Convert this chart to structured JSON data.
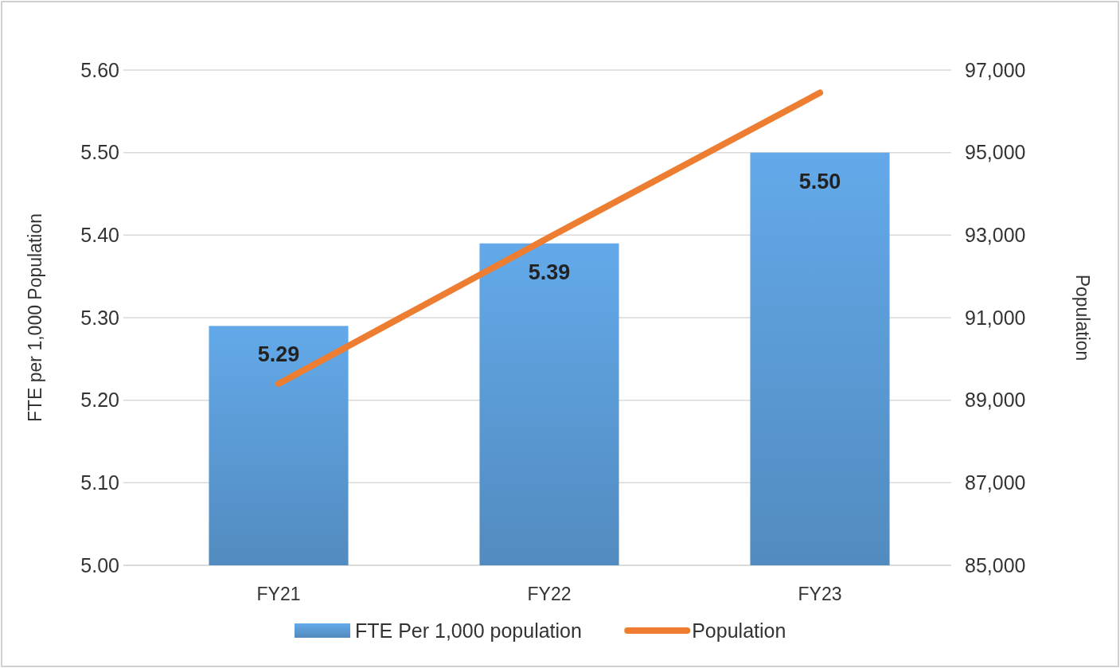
{
  "chart_data": {
    "type": "bar",
    "categories": [
      "FY21",
      "FY22",
      "FY23"
    ],
    "series": [
      {
        "name": "FTE Per 1,000 population",
        "color": "#5b9bd5",
        "values": [
          5.29,
          5.39,
          5.5
        ],
        "value_labels": [
          "5.29",
          "5.39",
          "5.50"
        ]
      },
      {
        "name": "Population",
        "type": "line",
        "axis": "y2",
        "color": "#ed7d31",
        "values": [
          89400,
          92950,
          96450
        ]
      }
    ],
    "ylabel": "FTE per 1,000 Population",
    "y2label": "Population",
    "ylim": [
      5.0,
      5.6
    ],
    "yticks": [
      {
        "value": 5.0,
        "label": "5.00"
      },
      {
        "value": 5.1,
        "label": "5.10"
      },
      {
        "value": 5.2,
        "label": "5.20"
      },
      {
        "value": 5.3,
        "label": "5.30"
      },
      {
        "value": 5.4,
        "label": "5.40"
      },
      {
        "value": 5.5,
        "label": "5.50"
      },
      {
        "value": 5.6,
        "label": "5.60"
      }
    ],
    "y2lim": [
      85000,
      97000
    ],
    "y2ticks": [
      {
        "value": 85000,
        "label": "85,000"
      },
      {
        "value": 87000,
        "label": "87,000"
      },
      {
        "value": 89000,
        "label": "89,000"
      },
      {
        "value": 91000,
        "label": "91,000"
      },
      {
        "value": 93000,
        "label": "93,000"
      },
      {
        "value": 95000,
        "label": "95,000"
      },
      {
        "value": 97000,
        "label": "97,000"
      }
    ],
    "grid": "y",
    "legend": "bottom",
    "marker": "none"
  }
}
